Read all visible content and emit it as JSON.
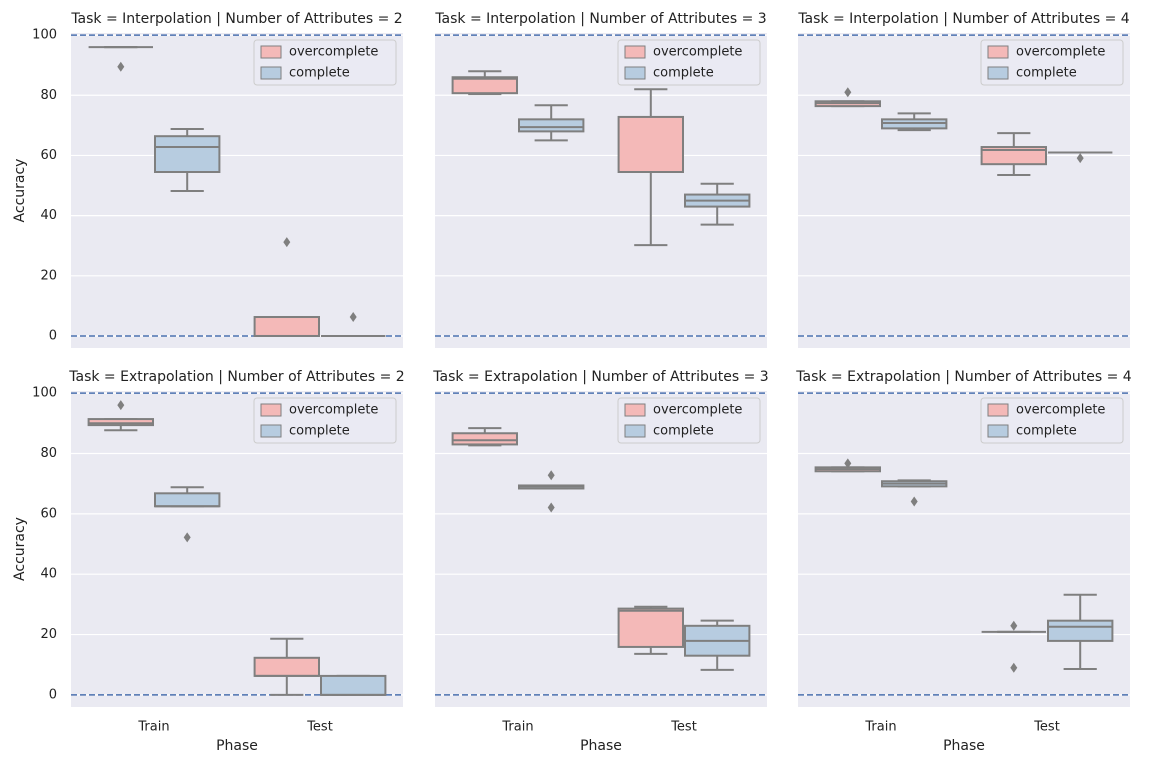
{
  "chart_data": [
    {
      "type": "box",
      "title": "Task = Interpolation | Number of Attributes = 2",
      "ylabel": "Accuracy",
      "ylim": [
        -4,
        100.7
      ],
      "yticks": [
        0,
        20,
        40,
        60,
        80,
        100
      ],
      "grid": true,
      "hlines": [
        0,
        100
      ],
      "hline_color": "#4c72b0",
      "legend": "upper right",
      "series": [
        {
          "name": "overcomplete",
          "color": "#f4b9b8",
          "values": [
            {
              "min": 96,
              "q1": 96,
              "median": 96,
              "q3": 96,
              "max": 96,
              "outliers": [
                89.5
              ]
            },
            {
              "min": 0,
              "q1": 0,
              "median": 0,
              "q3": 6.3,
              "max": 6.3,
              "outliers": [
                31.2
              ]
            }
          ]
        },
        {
          "name": "complete",
          "color": "#b7cce0",
          "values": [
            {
              "min": 48.2,
              "q1": 54.5,
              "median": 62.8,
              "q3": 66.4,
              "max": 68.8,
              "outliers": []
            },
            {
              "min": 0,
              "q1": 0,
              "median": 0,
              "q3": 0,
              "max": 0,
              "outliers": [
                6.3
              ]
            }
          ]
        }
      ]
    },
    {
      "type": "box",
      "title": "Task = Interpolation | Number of Attributes = 3",
      "ylim": [
        -4,
        100.7
      ],
      "yticks": [
        0,
        20,
        40,
        60,
        80,
        100
      ],
      "grid": true,
      "hlines": [
        0,
        100
      ],
      "hline_color": "#4c72b0",
      "legend": "upper right",
      "series": [
        {
          "name": "overcomplete",
          "color": "#f4b9b8",
          "values": [
            {
              "min": 80.4,
              "q1": 80.7,
              "median": 85.5,
              "q3": 86,
              "max": 88,
              "outliers": []
            },
            {
              "min": 30.2,
              "q1": 54.5,
              "median": 54.5,
              "q3": 72.8,
              "max": 82,
              "outliers": []
            }
          ]
        },
        {
          "name": "complete",
          "color": "#b7cce0",
          "values": [
            {
              "min": 65,
              "q1": 68,
              "median": 69.4,
              "q3": 72,
              "max": 76.7,
              "outliers": []
            },
            {
              "min": 37,
              "q1": 43,
              "median": 45,
              "q3": 47,
              "max": 50.6,
              "outliers": []
            }
          ]
        }
      ]
    },
    {
      "type": "box",
      "title": "Task = Interpolation | Number of Attributes = 4",
      "ylim": [
        -4,
        100.7
      ],
      "yticks": [
        0,
        20,
        40,
        60,
        80,
        100
      ],
      "grid": true,
      "hlines": [
        0,
        100
      ],
      "hline_color": "#4c72b0",
      "legend": "upper right",
      "series": [
        {
          "name": "overcomplete",
          "color": "#f4b9b8",
          "values": [
            {
              "min": 76.4,
              "q1": 76.4,
              "median": 77.4,
              "q3": 78,
              "max": 78,
              "outliers": [
                81
              ]
            },
            {
              "min": 53.5,
              "q1": 57.1,
              "median": 61.8,
              "q3": 62.8,
              "max": 67.4,
              "outliers": []
            }
          ]
        },
        {
          "name": "complete",
          "color": "#b7cce0",
          "values": [
            {
              "min": 68.4,
              "q1": 69,
              "median": 70.8,
              "q3": 72,
              "max": 74,
              "outliers": []
            },
            {
              "min": 61,
              "q1": 61,
              "median": 61,
              "q3": 61,
              "max": 61,
              "outliers": [
                59.1
              ]
            }
          ]
        }
      ]
    },
    {
      "type": "box",
      "title": "Task = Extrapolation | Number of Attributes = 2",
      "ylabel": "Accuracy",
      "xlabel": "Phase",
      "categories": [
        "Train",
        "Test"
      ],
      "ylim": [
        -4,
        100.7
      ],
      "yticks": [
        0,
        20,
        40,
        60,
        80,
        100
      ],
      "grid": true,
      "hlines": [
        0,
        100
      ],
      "hline_color": "#4c72b0",
      "legend": "upper right",
      "series": [
        {
          "name": "overcomplete",
          "color": "#f4b9b8",
          "values": [
            {
              "min": 87.7,
              "q1": 89.4,
              "median": 90,
              "q3": 91.4,
              "max": 91.4,
              "outliers": [
                96
              ]
            },
            {
              "min": 0,
              "q1": 6.3,
              "median": 6.3,
              "q3": 12.3,
              "max": 18.6,
              "outliers": []
            }
          ]
        },
        {
          "name": "complete",
          "color": "#b7cce0",
          "values": [
            {
              "min": 62.5,
              "q1": 62.5,
              "median": 62.5,
              "q3": 66.8,
              "max": 68.8,
              "outliers": [
                52.2
              ]
            },
            {
              "min": 0,
              "q1": 0,
              "median": 0,
              "q3": 6.3,
              "max": 6.3,
              "outliers": []
            }
          ]
        }
      ]
    },
    {
      "type": "box",
      "title": "Task = Extrapolation | Number of Attributes = 3",
      "xlabel": "Phase",
      "categories": [
        "Train",
        "Test"
      ],
      "ylim": [
        -4,
        100.7
      ],
      "yticks": [
        0,
        20,
        40,
        60,
        80,
        100
      ],
      "grid": true,
      "hlines": [
        0,
        100
      ],
      "hline_color": "#4c72b0",
      "legend": "upper right",
      "series": [
        {
          "name": "overcomplete",
          "color": "#f4b9b8",
          "values": [
            {
              "min": 82.7,
              "q1": 83,
              "median": 84.4,
              "q3": 86.7,
              "max": 88.4,
              "outliers": []
            },
            {
              "min": 13.6,
              "q1": 15.9,
              "median": 27.9,
              "q3": 28.6,
              "max": 29.2,
              "outliers": []
            }
          ]
        },
        {
          "name": "complete",
          "color": "#b7cce0",
          "values": [
            {
              "min": 68.4,
              "q1": 68.4,
              "median": 69.1,
              "q3": 69.4,
              "max": 69.4,
              "outliers": [
                72.8,
                62.1
              ]
            },
            {
              "min": 8.3,
              "q1": 13,
              "median": 17.9,
              "q3": 22.9,
              "max": 24.6,
              "outliers": []
            }
          ]
        }
      ]
    },
    {
      "type": "box",
      "title": "Task = Extrapolation | Number of Attributes = 4",
      "xlabel": "Phase",
      "categories": [
        "Train",
        "Test"
      ],
      "ylim": [
        -4,
        100.7
      ],
      "yticks": [
        0,
        20,
        40,
        60,
        80,
        100
      ],
      "grid": true,
      "hlines": [
        0,
        100
      ],
      "hline_color": "#4c72b0",
      "legend": "upper right",
      "series": [
        {
          "name": "overcomplete",
          "color": "#f4b9b8",
          "values": [
            {
              "min": 74.1,
              "q1": 74.1,
              "median": 74.8,
              "q3": 75.4,
              "max": 75.4,
              "outliers": [
                76.7
              ]
            },
            {
              "min": 20.9,
              "q1": 20.9,
              "median": 20.9,
              "q3": 20.9,
              "max": 20.9,
              "outliers": [
                22.9,
                9
              ]
            }
          ]
        },
        {
          "name": "complete",
          "color": "#b7cce0",
          "values": [
            {
              "min": 69.1,
              "q1": 69.1,
              "median": 70,
              "q3": 70.8,
              "max": 71.1,
              "outliers": [
                64.1
              ]
            },
            {
              "min": 8.6,
              "q1": 17.9,
              "median": 22.6,
              "q3": 24.6,
              "max": 33.2,
              "outliers": []
            }
          ]
        }
      ]
    }
  ]
}
